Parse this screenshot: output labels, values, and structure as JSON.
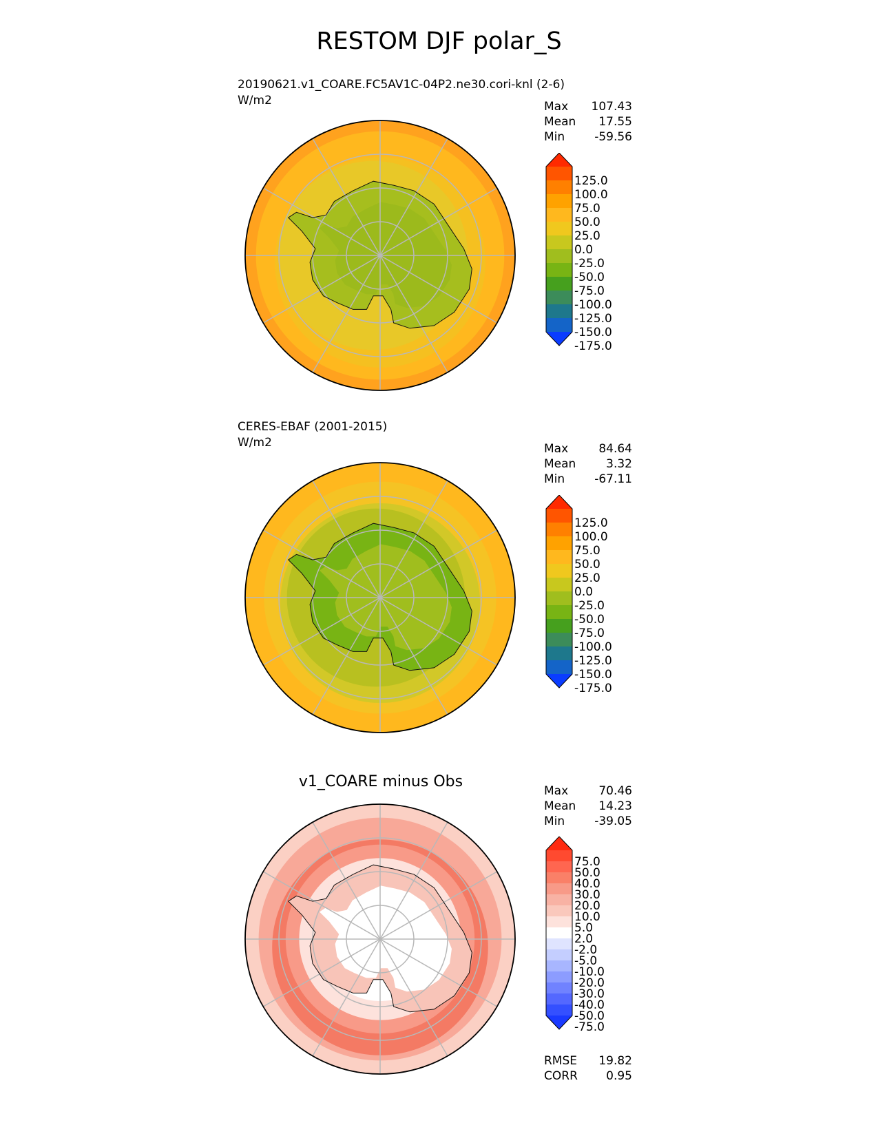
{
  "figure_title": "RESTOM DJF polar_S",
  "panels": [
    {
      "id": "test",
      "title": "20190621.v1_COARE.FC5AV1C-04P2.ne30.cori-knl (2-6)",
      "units": "W/m2",
      "stats": {
        "max_label": "Max",
        "max": "107.43",
        "mean_label": "Mean",
        "mean": "17.55",
        "min_label": "Min",
        "min": "-59.56"
      },
      "colorbar_labels": [
        "125.0",
        "100.0",
        "75.0",
        "50.0",
        "25.0",
        "0.0",
        "-25.0",
        "-50.0",
        "-75.0",
        "-100.0",
        "-125.0",
        "-150.0",
        "-175.0"
      ],
      "colorbar_colors": [
        "#ff2a00",
        "#ff5500",
        "#ff8000",
        "#ffa200",
        "#ffb81e",
        "#f0c81e",
        "#c8c81e",
        "#a0be1e",
        "#78b414",
        "#46a01e",
        "#3c8c5a",
        "#1e788c",
        "#1464c8",
        "#0a3cff"
      ]
    },
    {
      "id": "ref",
      "title": "CERES-EBAF (2001-2015)",
      "units": "W/m2",
      "stats": {
        "max_label": "Max",
        "max": "84.64",
        "mean_label": "Mean",
        "mean": "3.32",
        "min_label": "Min",
        "min": "-67.11"
      },
      "colorbar_labels": [
        "125.0",
        "100.0",
        "75.0",
        "50.0",
        "25.0",
        "0.0",
        "-25.0",
        "-50.0",
        "-75.0",
        "-100.0",
        "-125.0",
        "-150.0",
        "-175.0"
      ],
      "colorbar_colors": [
        "#ff2a00",
        "#ff5500",
        "#ff8000",
        "#ffa200",
        "#ffb81e",
        "#f0c81e",
        "#c8c81e",
        "#a0be1e",
        "#78b414",
        "#46a01e",
        "#3c8c5a",
        "#1e788c",
        "#1464c8",
        "#0a3cff"
      ]
    },
    {
      "id": "diff",
      "title": "v1_COARE minus Obs",
      "units": "",
      "stats": {
        "max_label": "Max",
        "max": "70.46",
        "mean_label": "Mean",
        "mean": "14.23",
        "min_label": "Min",
        "min": "-39.05"
      },
      "colorbar_labels": [
        "75.0",
        "50.0",
        "40.0",
        "30.0",
        "20.0",
        "10.0",
        "5.0",
        "2.0",
        "-2.0",
        "-5.0",
        "-10.0",
        "-20.0",
        "-30.0",
        "-40.0",
        "-50.0",
        "-75.0"
      ],
      "colorbar_colors": [
        "#ff2a10",
        "#ff4a30",
        "#ff6650",
        "#fa8068",
        "#f89a88",
        "#f8b2a4",
        "#fac8bc",
        "#fde2dc",
        "#ffffff",
        "#dfe4ff",
        "#c4ceff",
        "#a8b6ff",
        "#8c9cff",
        "#7082ff",
        "#5468ff",
        "#3450ff",
        "#1a3aff"
      ],
      "metrics": {
        "rmse_label": "RMSE",
        "rmse": "19.82",
        "corr_label": "CORR",
        "corr": "0.95"
      }
    }
  ]
}
